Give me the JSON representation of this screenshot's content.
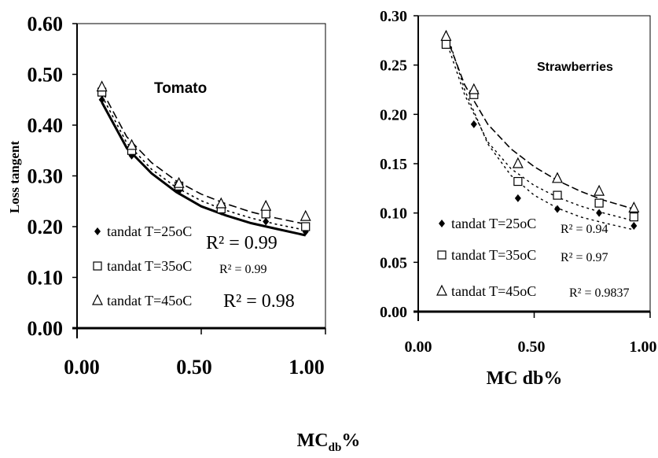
{
  "figure": {
    "shared_xlabel": "MC",
    "shared_xlabel_sub": "db",
    "shared_xlabel_suffix": "%"
  },
  "chart_data": [
    {
      "type": "scatter",
      "title": "Tomato",
      "ylabel": "Loss tangent",
      "xlabel": "",
      "xlim": [
        0,
        1
      ],
      "ylim": [
        0,
        0.6
      ],
      "xticks": [
        "0.00",
        "0.50",
        "1.00"
      ],
      "yticks": [
        "0.00",
        "0.10",
        "0.20",
        "0.30",
        "0.40",
        "0.50",
        "0.60"
      ],
      "series": [
        {
          "name": "tandat T=25oC",
          "marker": "diamond",
          "x": [
            0.1,
            0.22,
            0.41,
            0.58,
            0.76,
            0.92
          ],
          "y": [
            0.45,
            0.34,
            0.27,
            0.23,
            0.21,
            0.19
          ],
          "trend": [
            [
              0.1,
              0.445
            ],
            [
              0.2,
              0.355
            ],
            [
              0.3,
              0.305
            ],
            [
              0.4,
              0.268
            ],
            [
              0.5,
              0.24
            ],
            [
              0.6,
              0.222
            ],
            [
              0.7,
              0.207
            ],
            [
              0.8,
              0.196
            ],
            [
              0.92,
              0.183
            ]
          ],
          "r2": "R² = 0.99"
        },
        {
          "name": "tandat T=35oC",
          "marker": "square",
          "x": [
            0.1,
            0.22,
            0.41,
            0.58,
            0.76,
            0.92
          ],
          "y": [
            0.465,
            0.35,
            0.28,
            0.235,
            0.225,
            0.2
          ],
          "trend": [
            [
              0.1,
              0.458
            ],
            [
              0.2,
              0.365
            ],
            [
              0.3,
              0.313
            ],
            [
              0.4,
              0.277
            ],
            [
              0.5,
              0.251
            ],
            [
              0.6,
              0.232
            ],
            [
              0.7,
              0.217
            ],
            [
              0.8,
              0.205
            ],
            [
              0.92,
              0.193
            ]
          ],
          "r2": "R² = 0.99"
        },
        {
          "name": "tandat T=45oC",
          "marker": "triangle",
          "x": [
            0.1,
            0.22,
            0.41,
            0.58,
            0.76,
            0.92
          ],
          "y": [
            0.475,
            0.36,
            0.285,
            0.245,
            0.24,
            0.22
          ],
          "trend": [
            [
              0.1,
              0.468
            ],
            [
              0.2,
              0.377
            ],
            [
              0.3,
              0.326
            ],
            [
              0.4,
              0.29
            ],
            [
              0.5,
              0.264
            ],
            [
              0.6,
              0.245
            ],
            [
              0.7,
              0.229
            ],
            [
              0.8,
              0.217
            ],
            [
              0.92,
              0.205
            ]
          ],
          "r2": "R² = 0.98"
        }
      ]
    },
    {
      "type": "scatter",
      "title": "Strawberries",
      "ylabel": "",
      "xlabel": "MC db%",
      "xlim": [
        0,
        1
      ],
      "ylim": [
        0,
        0.3
      ],
      "xticks": [
        "0.00",
        "0.50",
        "1.00"
      ],
      "yticks": [
        "0.00",
        "0.05",
        "0.10",
        "0.15",
        "0.20",
        "0.25",
        "0.30"
      ],
      "series": [
        {
          "name": "tandat T=25oC",
          "marker": "diamond",
          "x": [
            0.12,
            0.24,
            0.43,
            0.6,
            0.78,
            0.93
          ],
          "y": [
            0.272,
            0.19,
            0.115,
            0.104,
            0.1,
            0.087
          ],
          "trend": [
            [
              0.12,
              0.285
            ],
            [
              0.2,
              0.225
            ],
            [
              0.3,
              0.17
            ],
            [
              0.4,
              0.138
            ],
            [
              0.5,
              0.118
            ],
            [
              0.6,
              0.105
            ],
            [
              0.7,
              0.096
            ],
            [
              0.8,
              0.09
            ],
            [
              0.93,
              0.083
            ]
          ],
          "r2": "R² = 0.94"
        },
        {
          "name": "tandat T=35oC",
          "marker": "square",
          "x": [
            0.12,
            0.24,
            0.43,
            0.6,
            0.78,
            0.93
          ],
          "y": [
            0.271,
            0.22,
            0.132,
            0.118,
            0.11,
            0.096
          ],
          "trend": [
            [
              0.12,
              0.275
            ],
            [
              0.2,
              0.22
            ],
            [
              0.3,
              0.172
            ],
            [
              0.4,
              0.145
            ],
            [
              0.5,
              0.128
            ],
            [
              0.6,
              0.116
            ],
            [
              0.7,
              0.107
            ],
            [
              0.8,
              0.1
            ],
            [
              0.93,
              0.092
            ]
          ],
          "r2": "R² = 0.97"
        },
        {
          "name": "tandat T=45oC",
          "marker": "triangle",
          "x": [
            0.12,
            0.24,
            0.43,
            0.6,
            0.78,
            0.93
          ],
          "y": [
            0.279,
            0.225,
            0.15,
            0.135,
            0.122,
            0.105
          ],
          "trend": [
            [
              0.12,
              0.28
            ],
            [
              0.2,
              0.23
            ],
            [
              0.3,
              0.19
            ],
            [
              0.4,
              0.165
            ],
            [
              0.5,
              0.147
            ],
            [
              0.6,
              0.133
            ],
            [
              0.7,
              0.122
            ],
            [
              0.8,
              0.113
            ],
            [
              0.93,
              0.104
            ]
          ],
          "r2": "R² = 0.9837"
        }
      ]
    }
  ]
}
